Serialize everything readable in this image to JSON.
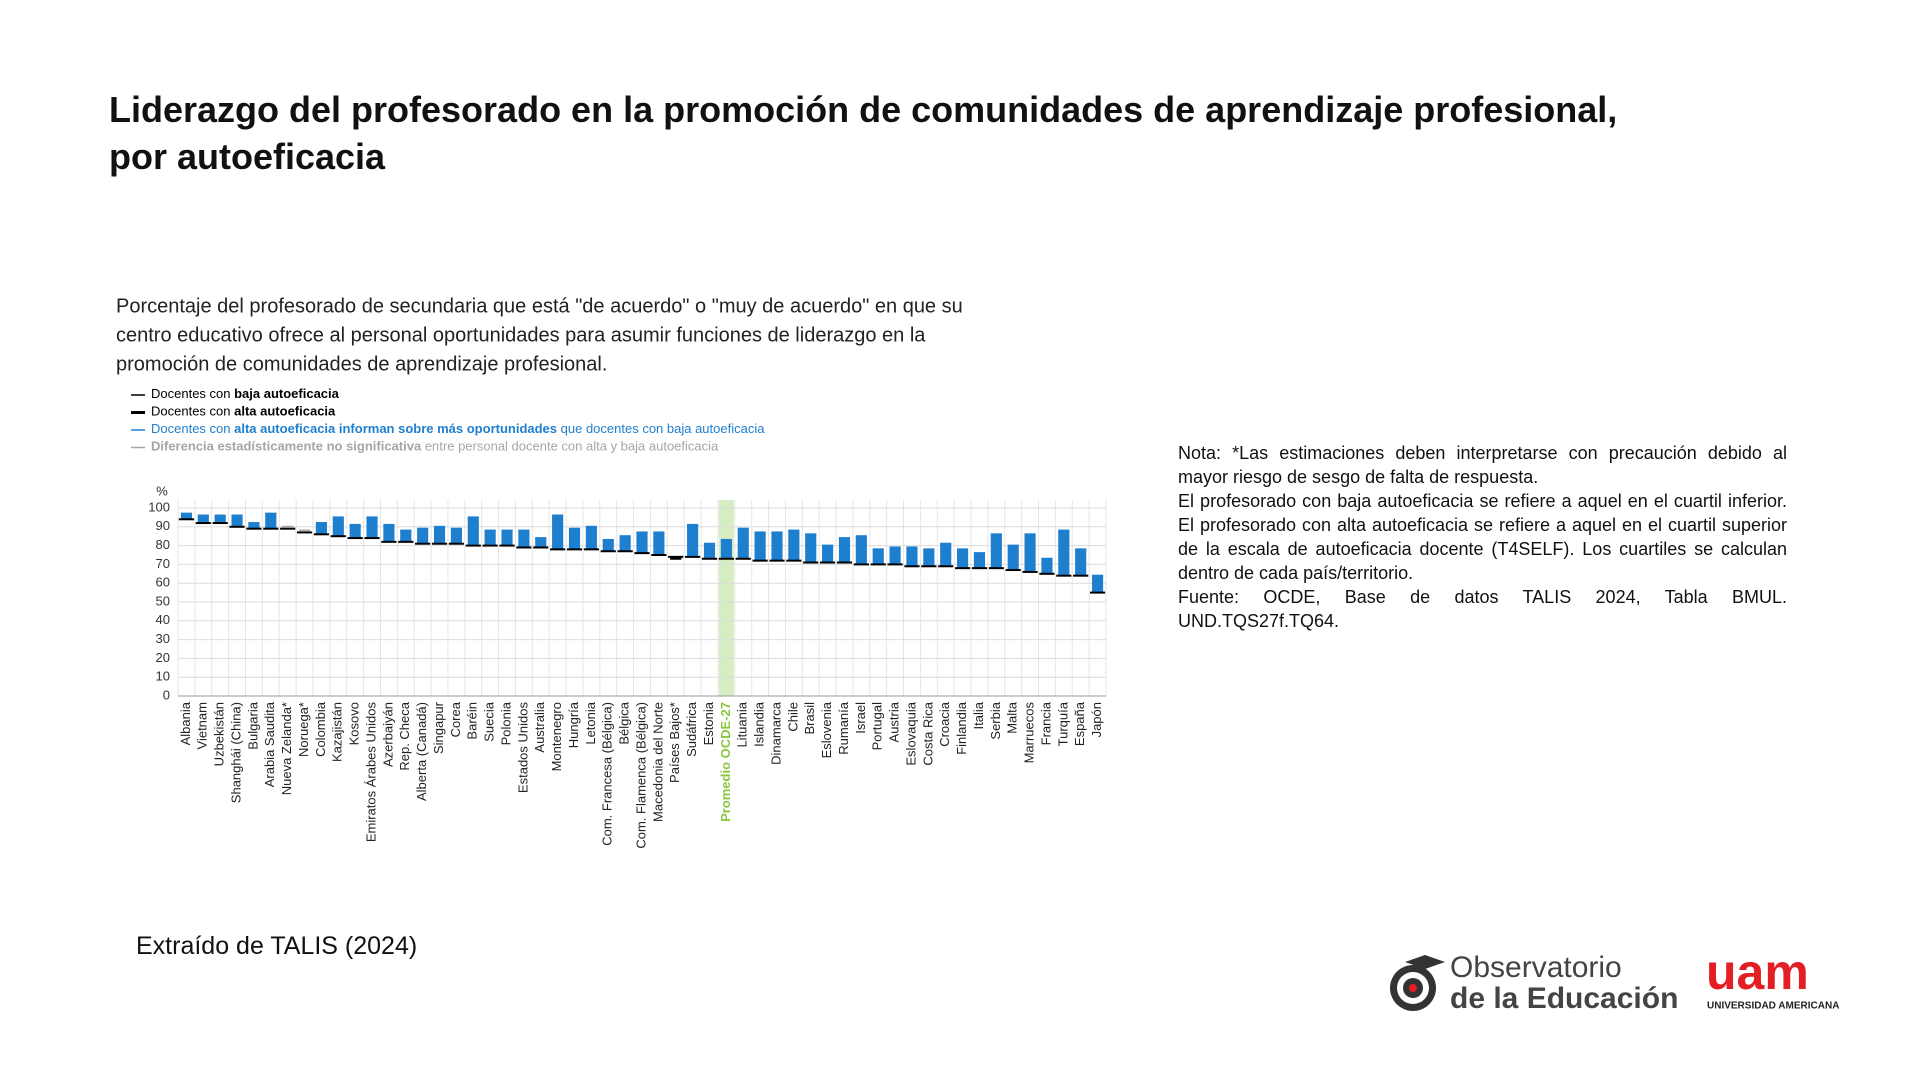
{
  "slide": {
    "title_line1": "Liderazgo del profesorado en la promoción de comunidades de aprendizaje profesional,",
    "title_line2": "por autoeficacia",
    "note": [
      "Nota: *Las estimaciones deben interpretarse con precaución debido al mayor riesgo de sesgo de falta de respuesta.",
      "El profesorado con baja autoeficacia se refiere a aquel en el cuartil inferior. El profesorado con alta autoeficacia se refiere a aquel en el cuartil superior de la escala de autoeficacia docente (T4SELF). Los cuartiles se calculan dentro de cada país/territorio.",
      "Fuente: OCDE, Base de datos TALIS 2024, Tabla BMUL. UND.TQS27f.TQ64."
    ],
    "source": "Extraído de TALIS (2024)",
    "logo_observatorio_line1": "Observatorio",
    "logo_observatorio_line2": "de la Educación",
    "logo_uam_mark": "uam",
    "logo_uam_name": "UNIVERSIDAD AMERICANA"
  },
  "chart_data": {
    "type": "floating_bar",
    "title_lines": [
      "Porcentaje del profesorado de secundaria que está \"de acuerdo\" o \"muy de acuerdo\" en que su",
      "centro educativo ofrece al personal oportunidades para asumir funciones de liderazgo en la",
      "promoción de comunidades de aprendizaje profesional."
    ],
    "y_label": "%",
    "legend": [
      {
        "color": "#000000",
        "parts": [
          {
            "text": "Docentes con ",
            "bold": false
          },
          {
            "text": "baja autoeficacia",
            "bold": true
          }
        ]
      },
      {
        "color": "#000000",
        "parts": [
          {
            "text": "Docentes con ",
            "bold": false
          },
          {
            "text": "alta autoeficacia",
            "bold": true
          }
        ]
      },
      {
        "color": "#1f7fcf",
        "parts": [
          {
            "text": "Docentes con ",
            "bold": false
          },
          {
            "text": "alta autoeficacia informan sobre más oportunidades",
            "bold": true
          },
          {
            "text": " que docentes con baja autoeficacia",
            "bold": false
          }
        ]
      },
      {
        "color": "#a6a6a6",
        "parts": [
          {
            "text": "Diferencia estadísticamente no significativa",
            "bold": true
          },
          {
            "text": " entre personal docente con alta y baja autoeficacia",
            "bold": false
          }
        ]
      }
    ],
    "categories": [
      "Albania",
      "Vietnam",
      "Uzbekistán",
      "Shanghái (China)",
      "Bulgaria",
      "Arabia Saudita",
      "Nueva Zelanda*",
      "Noruega*",
      "Colombia",
      "Kazajistán",
      "Kosovo",
      "Emiratos Árabes Unidos",
      "Azerbaiyán",
      "Rep. Checa",
      "Alberta (Canadá)",
      "Singapur",
      "Corea",
      "Baréin",
      "Suecia",
      "Polonia",
      "Estados Unidos",
      "Australia",
      "Montenegro",
      "Hungría",
      "Letonia",
      "Com. Francesa (Bélgica)",
      "Bélgica",
      "Com. Flamenca (Bélgica)",
      "Macedonia del Norte",
      "Países Bajos*",
      "Sudáfrica",
      "Estonia",
      "Promedio OCDE-27",
      "Lituania",
      "Islandia",
      "Dinamarca",
      "Chile",
      "Brasil",
      "Eslovenia",
      "Rumanía",
      "Israel",
      "Portugal",
      "Austria",
      "Eslovaquia",
      "Costa Rica",
      "Croacia",
      "Finlandia",
      "Italia",
      "Serbia",
      "Malta",
      "Marruecos",
      "Francia",
      "Turquía",
      "España",
      "Japón"
    ],
    "series": [
      {
        "color": "#000000",
        "values": [
          94,
          92,
          92,
          90,
          89,
          89,
          89,
          87,
          86,
          85,
          84,
          84,
          82,
          82,
          81,
          81,
          81,
          80,
          80,
          80,
          79,
          79,
          78,
          78,
          78,
          77,
          77,
          76,
          75,
          74,
          74,
          73,
          73,
          73,
          72,
          72,
          72,
          71,
          71,
          71,
          70,
          70,
          70,
          69,
          69,
          69,
          68,
          68,
          68,
          67,
          66,
          65,
          64,
          64,
          55
        ]
      },
      {
        "color": "#000000",
        "values": [
          97,
          96,
          96,
          96,
          92,
          97,
          90,
          88,
          92,
          95,
          91,
          95,
          91,
          88,
          89,
          90,
          89,
          95,
          88,
          88,
          88,
          84,
          96,
          89,
          90,
          83,
          85,
          87,
          87,
          73,
          91,
          81,
          83,
          89,
          87,
          87,
          88,
          86,
          80,
          84,
          85,
          78,
          79,
          79,
          78,
          81,
          78,
          76,
          86,
          80,
          86,
          73,
          88,
          78,
          64
        ]
      }
    ],
    "bar_colors": [
      "#1f7fcf",
      "#1f7fcf",
      "#1f7fcf",
      "#1f7fcf",
      "#1f7fcf",
      "#1f7fcf",
      "#a6a6a6",
      "#a6a6a6",
      "#1f7fcf",
      "#1f7fcf",
      "#1f7fcf",
      "#1f7fcf",
      "#1f7fcf",
      "#1f7fcf",
      "#1f7fcf",
      "#1f7fcf",
      "#1f7fcf",
      "#1f7fcf",
      "#1f7fcf",
      "#1f7fcf",
      "#1f7fcf",
      "#1f7fcf",
      "#1f7fcf",
      "#1f7fcf",
      "#1f7fcf",
      "#1f7fcf",
      "#1f7fcf",
      "#1f7fcf",
      "#1f7fcf",
      "#a6a6a6",
      "#1f7fcf",
      "#1f7fcf",
      "#1f7fcf",
      "#1f7fcf",
      "#1f7fcf",
      "#1f7fcf",
      "#1f7fcf",
      "#1f7fcf",
      "#1f7fcf",
      "#1f7fcf",
      "#1f7fcf",
      "#1f7fcf",
      "#1f7fcf",
      "#1f7fcf",
      "#1f7fcf",
      "#1f7fcf",
      "#1f7fcf",
      "#1f7fcf",
      "#1f7fcf",
      "#1f7fcf",
      "#1f7fcf",
      "#1f7fcf",
      "#1f7fcf",
      "#1f7fcf",
      "#1f7fcf"
    ],
    "highlight_category": "Promedio OCDE-27",
    "highlight_color": "#d6edc3",
    "highlight_label_color": "#8cc63f",
    "ylim": [
      0,
      100
    ],
    "yticks": [
      0,
      10,
      20,
      30,
      40,
      50,
      60,
      70,
      80,
      90,
      100
    ],
    "grid": true
  }
}
